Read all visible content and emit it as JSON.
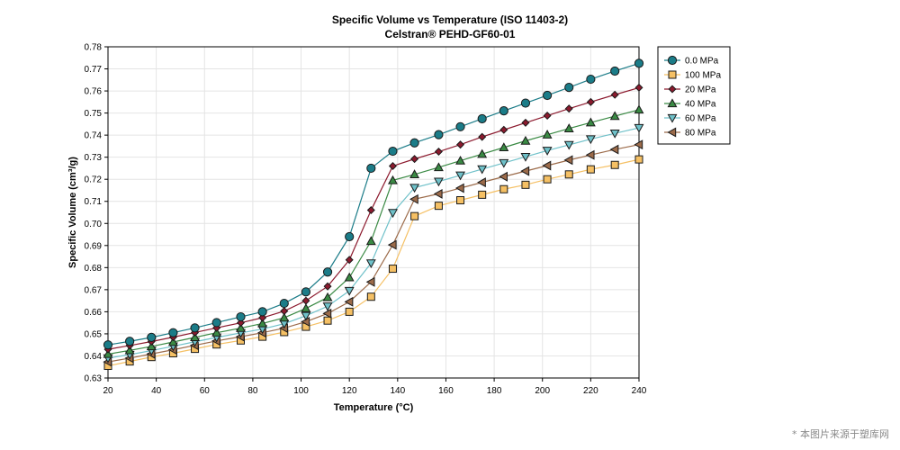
{
  "chart_data": {
    "type": "line",
    "title": "Specific Volume vs Temperature (ISO 11403-2)",
    "subtitle": "Celstran® PEHD-GF60-01",
    "xlabel": "Temperature (°C)",
    "ylabel": "Specific Volume (cm³/g)",
    "xlim": [
      20,
      240
    ],
    "ylim": [
      0.63,
      0.78
    ],
    "xticks": [
      20,
      40,
      60,
      80,
      100,
      120,
      140,
      160,
      180,
      200,
      220,
      240
    ],
    "yticks": [
      0.63,
      0.64,
      0.65,
      0.66,
      0.67,
      0.68,
      0.69,
      0.7,
      0.71,
      0.72,
      0.73,
      0.74,
      0.75,
      0.76,
      0.77,
      0.78
    ],
    "grid": true,
    "legend_position": "right-top",
    "x": [
      20,
      29,
      38,
      47,
      56,
      65,
      75,
      84,
      93,
      102,
      111,
      120,
      129,
      138,
      147,
      157,
      166,
      175,
      184,
      193,
      202,
      211,
      220,
      230,
      240
    ],
    "series": [
      {
        "name": "0.0 MPa",
        "color": "#1b7c88",
        "marker": "circle",
        "values": [
          0.645,
          0.6466,
          0.6484,
          0.6505,
          0.6527,
          0.6551,
          0.6577,
          0.66,
          0.6638,
          0.669,
          0.678,
          0.694,
          0.725,
          0.7327,
          0.7365,
          0.7402,
          0.7438,
          0.7474,
          0.751,
          0.7545,
          0.758,
          0.7616,
          0.7653,
          0.769,
          0.7725
        ]
      },
      {
        "name": "100 MPa",
        "color": "#f5c064",
        "marker": "square",
        "values": [
          0.6355,
          0.6375,
          0.6395,
          0.6412,
          0.6432,
          0.6452,
          0.647,
          0.6487,
          0.6508,
          0.6532,
          0.656,
          0.66,
          0.6668,
          0.6795,
          0.7033,
          0.708,
          0.7105,
          0.713,
          0.7155,
          0.7175,
          0.72,
          0.7222,
          0.7245,
          0.7265,
          0.729
        ]
      },
      {
        "name": "20 MPa",
        "color": "#8c1a2e",
        "marker": "diamond",
        "values": [
          0.643,
          0.6447,
          0.6465,
          0.6485,
          0.6506,
          0.6527,
          0.655,
          0.6573,
          0.6603,
          0.665,
          0.6715,
          0.6835,
          0.706,
          0.726,
          0.7292,
          0.7325,
          0.7357,
          0.7392,
          0.7424,
          0.7456,
          0.7488,
          0.752,
          0.755,
          0.7583,
          0.7615
        ]
      },
      {
        "name": "40 MPa",
        "color": "#3a8a44",
        "marker": "triangle-up",
        "values": [
          0.6408,
          0.6425,
          0.6443,
          0.6463,
          0.6484,
          0.6505,
          0.6526,
          0.6547,
          0.6573,
          0.6615,
          0.6665,
          0.6755,
          0.692,
          0.7195,
          0.7222,
          0.7254,
          0.7284,
          0.7314,
          0.7344,
          0.7374,
          0.7402,
          0.743,
          0.7457,
          0.7486,
          0.7515
        ]
      },
      {
        "name": "60 MPa",
        "color": "#6fc1c9",
        "marker": "triangle-down",
        "values": [
          0.639,
          0.6406,
          0.6424,
          0.6444,
          0.6464,
          0.6484,
          0.6504,
          0.6522,
          0.6546,
          0.6582,
          0.6625,
          0.6695,
          0.682,
          0.7048,
          0.7162,
          0.719,
          0.7218,
          0.7246,
          0.7274,
          0.7302,
          0.733,
          0.7356,
          0.7382,
          0.7408,
          0.7433
        ]
      },
      {
        "name": "80 MPa",
        "color": "#9c6b4a",
        "marker": "triangle-left",
        "values": [
          0.6373,
          0.639,
          0.6409,
          0.6428,
          0.6448,
          0.6468,
          0.6487,
          0.6505,
          0.6526,
          0.6555,
          0.6592,
          0.6645,
          0.6735,
          0.6903,
          0.711,
          0.7134,
          0.716,
          0.7186,
          0.7212,
          0.7237,
          0.7262,
          0.7287,
          0.731,
          0.7335,
          0.7357
        ]
      }
    ]
  },
  "watermark": "* 本图片来源于塑库网"
}
